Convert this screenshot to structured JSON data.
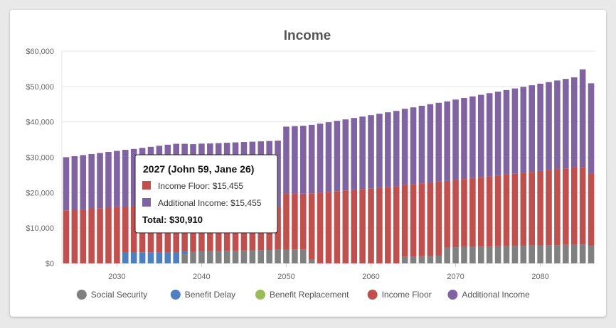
{
  "chart_data": {
    "type": "bar",
    "stacked": true,
    "title": "Income",
    "xlabel": "",
    "ylabel": "",
    "ylim": [
      0,
      60000
    ],
    "y_ticks": [
      "$0",
      "$10,000",
      "$20,000",
      "$30,000",
      "$40,000",
      "$50,000",
      "$60,000"
    ],
    "y_tick_values": [
      0,
      10000,
      20000,
      30000,
      40000,
      50000,
      60000
    ],
    "x_tick_labels": [
      "2030",
      "2040",
      "2050",
      "2060",
      "2070",
      "2080"
    ],
    "x_tick_values": [
      2030,
      2040,
      2050,
      2060,
      2070,
      2080
    ],
    "grid": true,
    "legend_position": "bottom",
    "categories": [
      2024,
      2025,
      2026,
      2027,
      2028,
      2029,
      2030,
      2031,
      2032,
      2033,
      2034,
      2035,
      2036,
      2037,
      2038,
      2039,
      2040,
      2041,
      2042,
      2043,
      2044,
      2045,
      2046,
      2047,
      2048,
      2049,
      2050,
      2051,
      2052,
      2053,
      2054,
      2055,
      2056,
      2057,
      2058,
      2059,
      2060,
      2061,
      2062,
      2063,
      2064,
      2065,
      2066,
      2067,
      2068,
      2069,
      2070,
      2071,
      2072,
      2073,
      2074,
      2075,
      2076,
      2077,
      2078,
      2079,
      2080,
      2081,
      2082,
      2083,
      2084,
      2085,
      2086
    ],
    "series": [
      {
        "name": "Social Security",
        "color": "#808080",
        "values": [
          0,
          0,
          0,
          0,
          0,
          0,
          0,
          0,
          0,
          0,
          0,
          0,
          0,
          0,
          2600,
          3300,
          3400,
          3450,
          3500,
          3550,
          3600,
          3650,
          3700,
          3750,
          3800,
          3850,
          3900,
          3950,
          4000,
          1200,
          0,
          0,
          0,
          0,
          0,
          0,
          0,
          0,
          0,
          0,
          2000,
          2000,
          2050,
          2100,
          2200,
          4500,
          4600,
          4650,
          4700,
          4750,
          4800,
          4850,
          4900,
          4950,
          5000,
          5050,
          5100,
          5150,
          5200,
          5250,
          5300,
          5350,
          5000
        ]
      },
      {
        "name": "Benefit Delay",
        "color": "#4e7fbf",
        "values": [
          0,
          0,
          0,
          0,
          0,
          0,
          0,
          3100,
          3100,
          3150,
          3150,
          3200,
          3200,
          3200,
          800,
          0,
          0,
          0,
          0,
          0,
          0,
          0,
          0,
          0,
          0,
          0,
          0,
          0,
          0,
          0,
          0,
          0,
          0,
          0,
          0,
          0,
          0,
          0,
          0,
          0,
          0,
          0,
          0,
          0,
          0,
          0,
          0,
          0,
          0,
          0,
          0,
          0,
          0,
          0,
          0,
          0,
          0,
          0,
          0,
          0,
          0,
          0,
          0
        ]
      },
      {
        "name": "Benefit Replacement",
        "color": "#9bbb59",
        "values": [
          0,
          0,
          0,
          0,
          0,
          0,
          0,
          0,
          0,
          0,
          0,
          0,
          0,
          0,
          0,
          0,
          0,
          0,
          0,
          0,
          0,
          0,
          0,
          0,
          0,
          0,
          0,
          0,
          0,
          0,
          0,
          0,
          0,
          0,
          0,
          0,
          0,
          0,
          0,
          0,
          0,
          0,
          0,
          0,
          0,
          0,
          0,
          0,
          0,
          0,
          0,
          0,
          0,
          0,
          0,
          0,
          0,
          0,
          0,
          0,
          0,
          0,
          0
        ]
      },
      {
        "name": "Income Floor",
        "color": "#c0504d",
        "values": [
          15000,
          15150,
          15300,
          15455,
          15600,
          15750,
          15900,
          12950,
          13050,
          13150,
          13300,
          13400,
          13550,
          13650,
          13300,
          13150,
          13050,
          12900,
          12800,
          12700,
          12600,
          12500,
          12400,
          12300,
          12200,
          12100,
          15850,
          15800,
          15700,
          18600,
          20000,
          20200,
          20400,
          20600,
          20800,
          21000,
          21200,
          21400,
          21600,
          21800,
          20200,
          20400,
          20600,
          20800,
          20900,
          18800,
          19000,
          19200,
          19400,
          19600,
          19800,
          20000,
          20200,
          20400,
          20600,
          20800,
          21000,
          21200,
          21400,
          21600,
          21800,
          21900,
          20400
        ]
      },
      {
        "name": "Additional Income",
        "color": "#8064a2",
        "values": [
          15000,
          15150,
          15300,
          15455,
          15600,
          15750,
          15900,
          16050,
          16200,
          16350,
          16500,
          16650,
          16800,
          16950,
          17100,
          17250,
          17400,
          17550,
          17700,
          17850,
          18000,
          18150,
          18300,
          18450,
          18600,
          18750,
          18900,
          19050,
          19200,
          19350,
          19500,
          19700,
          19900,
          20100,
          20300,
          20500,
          20700,
          20900,
          21100,
          21300,
          21500,
          21700,
          21900,
          22100,
          22300,
          22500,
          22700,
          22900,
          23100,
          23300,
          23500,
          23700,
          23900,
          24100,
          24300,
          24500,
          24700,
          24900,
          25100,
          25300,
          25500,
          27600,
          25500
        ]
      }
    ]
  },
  "tooltip": {
    "header": "2027 (John 59, Jane 26)",
    "rows": [
      {
        "label": "Income Floor: $15,455",
        "color": "#c0504d"
      },
      {
        "label": "Additional Income: $15,455",
        "color": "#8064a2"
      }
    ],
    "total": "Total: $30,910"
  }
}
